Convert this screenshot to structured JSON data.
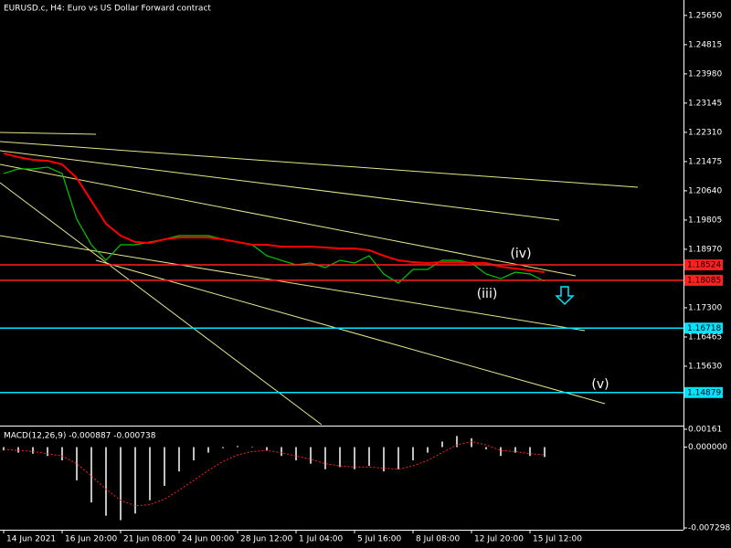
{
  "chart_data": [
    {
      "type": "line",
      "title": "EURUSD.c, H4:  Euro vs US Dollar Forward contract",
      "xlim": [
        -0.25,
        46.5
      ],
      "xticks": [
        {
          "value": 0,
          "label": "14 Jun 2021"
        },
        {
          "value": 4,
          "label": "16 Jun 20:00"
        },
        {
          "value": 8,
          "label": "21 Jun 08:00"
        },
        {
          "value": 12,
          "label": "24 Jun 00:00"
        },
        {
          "value": 16,
          "label": "28 Jun 12:00"
        },
        {
          "value": 20,
          "label": "1 Jul 04:00"
        },
        {
          "value": 24,
          "label": "5 Jul 16:00"
        },
        {
          "value": 28,
          "label": "8 Jul 08:00"
        },
        {
          "value": 32,
          "label": "12 Jul 20:00"
        },
        {
          "value": 36,
          "label": "15 Jul 12:00"
        }
      ],
      "ylim": [
        1.1396,
        1.2609
      ],
      "yticks": [
        {
          "value": 1.2565,
          "label": "1.25650"
        },
        1.24815,
        {
          "value": 1.2398,
          "label": "1.23980"
        },
        1.23145,
        {
          "value": 1.2231,
          "label": "1.22310"
        },
        1.21475,
        {
          "value": 1.2064,
          "label": "1.20640"
        },
        1.19805,
        {
          "value": 1.1897,
          "label": "1.18970"
        },
        {
          "value": 1.173,
          "label": "1.17300"
        },
        1.16465,
        {
          "value": 1.1563,
          "label": "1.15630"
        }
      ],
      "series": [
        {
          "color": "#00c800",
          "values": [
            1.21135,
            1.21265,
            1.21265,
            1.21318,
            1.21135,
            1.1983,
            1.19099,
            1.18655,
            1.19099,
            1.19099,
            1.19177,
            1.19256,
            1.1936,
            1.1936,
            1.1936,
            1.19256,
            1.19177,
            1.19099,
            1.18786,
            1.18655,
            1.18525,
            1.18577,
            1.18447,
            1.18655,
            1.18577,
            1.18786,
            1.18264,
            1.18003,
            1.18394,
            1.18394,
            1.18655,
            1.18655,
            1.18577,
            1.18264,
            1.18133,
            1.18316,
            1.18264,
            1.18055
          ]
        },
        {
          "color": "#ff0000",
          "values": [
            1.21709,
            1.21605,
            1.21526,
            1.215,
            1.21396,
            1.21005,
            1.20352,
            1.197,
            1.1936,
            1.19177,
            1.19151,
            1.19256,
            1.19308,
            1.19308,
            1.19308,
            1.19256,
            1.19177,
            1.19099,
            1.19099,
            1.19047,
            1.19047,
            1.19047,
            1.19021,
            1.18995,
            1.18995,
            1.18943,
            1.18786,
            1.18655,
            1.18603,
            1.18577,
            1.18603,
            1.18603,
            1.18577,
            1.18577,
            1.18473,
            1.18421,
            1.18368,
            1.18316
          ]
        }
      ],
      "hlines": [
        {
          "value": 1.18524,
          "label": "1.18524",
          "color": "#ff2020"
        },
        {
          "value": 1.18085,
          "label": "1.18085",
          "color": "#ff2020"
        },
        {
          "value": 1.16718,
          "label": "1.16718",
          "color": "#00e5ff"
        },
        {
          "value": 1.14879,
          "label": "1.14879",
          "color": "#00e5ff"
        }
      ],
      "annotations": [
        "(iv)",
        "(iii)",
        "(v)"
      ]
    },
    {
      "type": "bar",
      "title": "MACD(12,26,9) -0.000887 -0.000738",
      "ylim": [
        -0.007298,
        0.00161
      ],
      "yticks": [
        0.00161,
        {
          "value": 0,
          "label": "0.000000"
        },
        -0.007298
      ],
      "series": [
        {
          "type": "bar",
          "color": "#c0c0c0",
          "values": [
            -0.0003,
            -0.0005,
            -0.0006,
            -0.0008,
            -0.0012,
            -0.003,
            -0.005,
            -0.0062,
            -0.0066,
            -0.006,
            -0.0048,
            -0.0035,
            -0.0022,
            -0.0012,
            -0.0005,
            -0.0001,
            0.0001,
            0,
            -0.0003,
            -0.0008,
            -0.0012,
            -0.0015,
            -0.002,
            -0.0018,
            -0.002,
            -0.0017,
            -0.0022,
            -0.002,
            -0.0012,
            -0.0005,
            0.0005,
            0.001,
            0.0008,
            -0.0002,
            -0.0008,
            -0.0005,
            -0.0008,
            -0.0009
          ]
        },
        {
          "type": "line",
          "color": "#ff2020",
          "values": [
            -0.0002,
            -0.0003,
            -0.0004,
            -0.0006,
            -0.0008,
            -0.0015,
            -0.0026,
            -0.0038,
            -0.0048,
            -0.0053,
            -0.0052,
            -0.0047,
            -0.0039,
            -0.003,
            -0.0021,
            -0.0013,
            -0.0007,
            -0.0004,
            -0.0003,
            -0.0005,
            -0.0008,
            -0.0011,
            -0.0015,
            -0.0017,
            -0.0018,
            -0.0018,
            -0.0019,
            -0.002,
            -0.0017,
            -0.0012,
            -0.0005,
            0.0002,
            0.0005,
            0.0002,
            -0.0003,
            -0.0004,
            -0.0006,
            -0.0007
          ]
        }
      ]
    }
  ]
}
